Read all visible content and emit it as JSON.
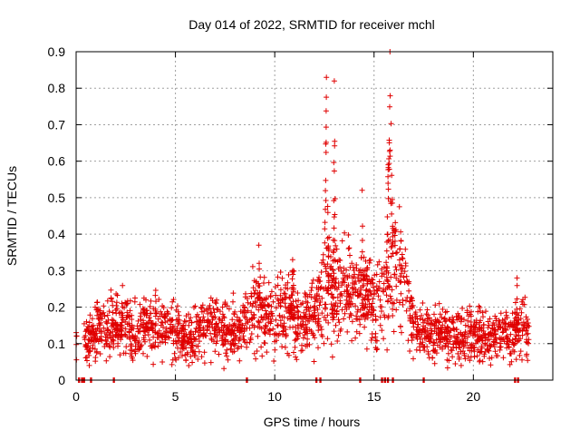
{
  "chart_data": {
    "type": "scatter",
    "title": "Day 014 of 2022, SRMTID for receiver mchl",
    "xlabel": "GPS time / hours",
    "ylabel": "SRMTID / TECUs",
    "xlim": [
      0,
      24
    ],
    "ylim": [
      0,
      0.9
    ],
    "x_ticks": [
      0,
      5,
      10,
      15,
      20
    ],
    "x_tick_labels": [
      "0",
      "5",
      "10",
      "15",
      "20"
    ],
    "y_ticks": [
      0,
      0.1,
      0.2,
      0.3,
      0.4,
      0.5,
      0.6,
      0.7,
      0.8,
      0.9
    ],
    "y_tick_labels": [
      "0",
      "0.1",
      "0.2",
      "0.3",
      "0.4",
      "0.5",
      "0.6",
      "0.7",
      "0.8",
      "0.9"
    ],
    "grid": true,
    "marker": "+",
    "color": "#e00000",
    "profile": [
      [
        0.0,
        0.11
      ],
      [
        0.5,
        0.1
      ],
      [
        1.0,
        0.14
      ],
      [
        1.5,
        0.15
      ],
      [
        2.0,
        0.16
      ],
      [
        2.5,
        0.15
      ],
      [
        3.0,
        0.13
      ],
      [
        3.5,
        0.15
      ],
      [
        4.0,
        0.16
      ],
      [
        4.5,
        0.15
      ],
      [
        5.0,
        0.13
      ],
      [
        5.5,
        0.12
      ],
      [
        6.0,
        0.12
      ],
      [
        6.5,
        0.14
      ],
      [
        7.0,
        0.15
      ],
      [
        7.5,
        0.14
      ],
      [
        8.0,
        0.15
      ],
      [
        8.5,
        0.16
      ],
      [
        9.0,
        0.19
      ],
      [
        9.5,
        0.18
      ],
      [
        10.0,
        0.16
      ],
      [
        10.5,
        0.2
      ],
      [
        11.0,
        0.17
      ],
      [
        11.5,
        0.15
      ],
      [
        12.0,
        0.18
      ],
      [
        12.5,
        0.22
      ],
      [
        13.0,
        0.24
      ],
      [
        13.5,
        0.25
      ],
      [
        14.0,
        0.24
      ],
      [
        14.5,
        0.22
      ],
      [
        15.0,
        0.2
      ],
      [
        15.5,
        0.22
      ],
      [
        16.0,
        0.3
      ],
      [
        16.5,
        0.28
      ],
      [
        17.0,
        0.15
      ],
      [
        17.5,
        0.13
      ],
      [
        18.0,
        0.13
      ],
      [
        18.5,
        0.14
      ],
      [
        19.0,
        0.12
      ],
      [
        19.5,
        0.12
      ],
      [
        20.0,
        0.13
      ],
      [
        20.5,
        0.12
      ],
      [
        21.0,
        0.11
      ],
      [
        21.5,
        0.12
      ],
      [
        22.0,
        0.13
      ],
      [
        22.5,
        0.15
      ],
      [
        22.8,
        0.12
      ]
    ],
    "spikes": [
      {
        "center": 12.6,
        "peak": 0.83,
        "width": 0.25
      },
      {
        "center": 13.0,
        "peak": 0.82,
        "width": 0.15
      },
      {
        "center": 14.4,
        "peak": 0.52,
        "width": 0.15
      },
      {
        "center": 15.8,
        "peak": 0.9,
        "width": 0.35
      },
      {
        "center": 9.2,
        "peak": 0.37,
        "width": 0.15
      },
      {
        "center": 10.9,
        "peak": 0.33,
        "width": 0.2
      },
      {
        "center": 22.2,
        "peak": 0.28,
        "width": 0.1
      }
    ],
    "coverage": [
      [
        0.0,
        0.05
      ],
      [
        0.4,
        22.8
      ]
    ],
    "zero_markers": [
      0.15,
      0.3,
      0.4,
      0.75,
      1.9,
      8.6,
      12.1,
      12.3,
      14.3,
      15.4,
      15.55,
      15.7,
      15.95,
      17.5,
      22.1,
      22.25
    ]
  }
}
